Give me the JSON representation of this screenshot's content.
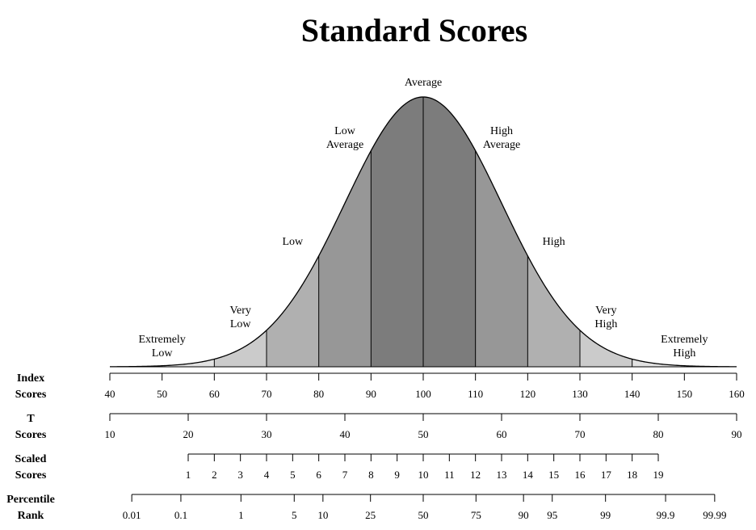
{
  "chart_data": {
    "type": "area",
    "title": "Standard Scores",
    "distribution": {
      "mean": 100,
      "sd": 15
    },
    "bands": [
      {
        "lines": [
          "Extremely",
          "Low"
        ],
        "from": 40,
        "to": 70,
        "fill": "#ffffff"
      },
      {
        "lines": [
          "Extremely",
          "Low"
        ],
        "from": 40,
        "to": 70,
        "fill": "#ffffff"
      }
    ],
    "regions": [
      {
        "lines": [
          "Extremely",
          "Low"
        ],
        "from": 40,
        "to": 60,
        "fill": "#e2e2e2",
        "label_x": 65
      },
      {
        "lines": [
          "Very",
          "Low"
        ],
        "from": 60,
        "to": 70,
        "fill": "#cbcbcb",
        "label_x": 65
      },
      {
        "lines": [
          "Low"
        ],
        "from": 70,
        "to": 80,
        "fill": "#b0b0b0",
        "label_x": 75
      },
      {
        "lines": [
          "Low",
          "Average"
        ],
        "from": 80,
        "to": 90,
        "fill": "#979797",
        "label_x": 85
      },
      {
        "lines": [
          "Average"
        ],
        "from": 90,
        "to": 110,
        "fill": "#7c7c7c",
        "label_x": 100
      },
      {
        "lines": [
          "High",
          "Average"
        ],
        "from": 110,
        "to": 120,
        "fill": "#979797",
        "label_x": 115
      },
      {
        "lines": [
          "High"
        ],
        "from": 120,
        "to": 130,
        "fill": "#b0b0b0",
        "label_x": 125
      },
      {
        "lines": [
          "Very",
          "High"
        ],
        "from": 130,
        "to": 140,
        "fill": "#cbcbcb",
        "label_x": 135
      },
      {
        "lines": [
          "Extremely",
          "High"
        ],
        "from": 140,
        "to": 160,
        "fill": "#e2e2e2",
        "label_x": 150
      }
    ],
    "category_labels": [
      {
        "lines": [
          "Extremely",
          "Low"
        ],
        "x": 50
      },
      {
        "lines": [
          "Very",
          "Low"
        ],
        "x": 65
      },
      {
        "lines": [
          "Low"
        ],
        "x": 75
      },
      {
        "lines": [
          "Low",
          "Average"
        ],
        "x": 85
      },
      {
        "lines": [
          "Average"
        ],
        "x": 100
      },
      {
        "lines": [
          "High",
          "Average"
        ],
        "x": 115
      },
      {
        "lines": [
          "High"
        ],
        "x": 125
      },
      {
        "lines": [
          "Very",
          "High"
        ],
        "x": 135
      },
      {
        "lines": [
          "Extremely",
          "High"
        ],
        "x": 150
      }
    ],
    "boundaries": [
      60,
      70,
      80,
      90,
      100,
      110,
      120,
      130,
      140
    ],
    "scales": [
      {
        "lines": [
          "Index",
          "Scores"
        ],
        "ticks": [
          {
            "v": 40,
            "label": "40"
          },
          {
            "v": 50,
            "label": "50"
          },
          {
            "v": 60,
            "label": "60"
          },
          {
            "v": 70,
            "label": "70"
          },
          {
            "v": 80,
            "label": "80"
          },
          {
            "v": 90,
            "label": "90"
          },
          {
            "v": 100,
            "label": "100"
          },
          {
            "v": 110,
            "label": "110"
          },
          {
            "v": 120,
            "label": "120"
          },
          {
            "v": 130,
            "label": "130"
          },
          {
            "v": 140,
            "label": "140"
          },
          {
            "v": 150,
            "label": "150"
          },
          {
            "v": 160,
            "label": "160"
          }
        ],
        "line_from": 40,
        "line_to": 160
      },
      {
        "lines": [
          "T",
          "Scores"
        ],
        "ticks": [
          {
            "v": 40,
            "label": "10"
          },
          {
            "v": 55,
            "label": "20"
          },
          {
            "v": 70,
            "label": "30"
          },
          {
            "v": 85,
            "label": "40"
          },
          {
            "v": 100,
            "label": "50"
          },
          {
            "v": 115,
            "label": "60"
          },
          {
            "v": 130,
            "label": "70"
          },
          {
            "v": 145,
            "label": "80"
          },
          {
            "v": 160,
            "label": "90"
          }
        ],
        "line_from": 40,
        "line_to": 160
      },
      {
        "lines": [
          "Scaled",
          "Scores"
        ],
        "ticks": [
          {
            "v": 55,
            "label": "1"
          },
          {
            "v": 60,
            "label": "2"
          },
          {
            "v": 65,
            "label": "3"
          },
          {
            "v": 70,
            "label": "4"
          },
          {
            "v": 75,
            "label": "5"
          },
          {
            "v": 80,
            "label": "6"
          },
          {
            "v": 85,
            "label": "7"
          },
          {
            "v": 90,
            "label": "8"
          },
          {
            "v": 95,
            "label": "9"
          },
          {
            "v": 100,
            "label": "10"
          },
          {
            "v": 105,
            "label": "11"
          },
          {
            "v": 110,
            "label": "12"
          },
          {
            "v": 115,
            "label": "13"
          },
          {
            "v": 120,
            "label": "14"
          },
          {
            "v": 125,
            "label": "15"
          },
          {
            "v": 130,
            "label": "16"
          },
          {
            "v": 135,
            "label": "17"
          },
          {
            "v": 140,
            "label": "18"
          },
          {
            "v": 145,
            "label": "19"
          }
        ],
        "line_from": 55,
        "line_to": 145
      },
      {
        "lines": [
          "Percentile",
          "Rank"
        ],
        "ticks": [
          {
            "v": 44.2,
            "label": "0.01"
          },
          {
            "v": 53.6,
            "label": "0.1"
          },
          {
            "v": 65.1,
            "label": "1"
          },
          {
            "v": 75.3,
            "label": "5"
          },
          {
            "v": 80.8,
            "label": "10"
          },
          {
            "v": 89.9,
            "label": "25"
          },
          {
            "v": 100,
            "label": "50"
          },
          {
            "v": 110.1,
            "label": "75"
          },
          {
            "v": 119.2,
            "label": "90"
          },
          {
            "v": 124.7,
            "label": "95"
          },
          {
            "v": 134.9,
            "label": "99"
          },
          {
            "v": 146.4,
            "label": "99.9"
          },
          {
            "v": 155.8,
            "label": "99.99"
          }
        ],
        "line_from": 44.2,
        "line_to": 155.8
      }
    ],
    "colors": {
      "curve": "#000000",
      "axis": "#000000",
      "text": "#000000"
    }
  }
}
